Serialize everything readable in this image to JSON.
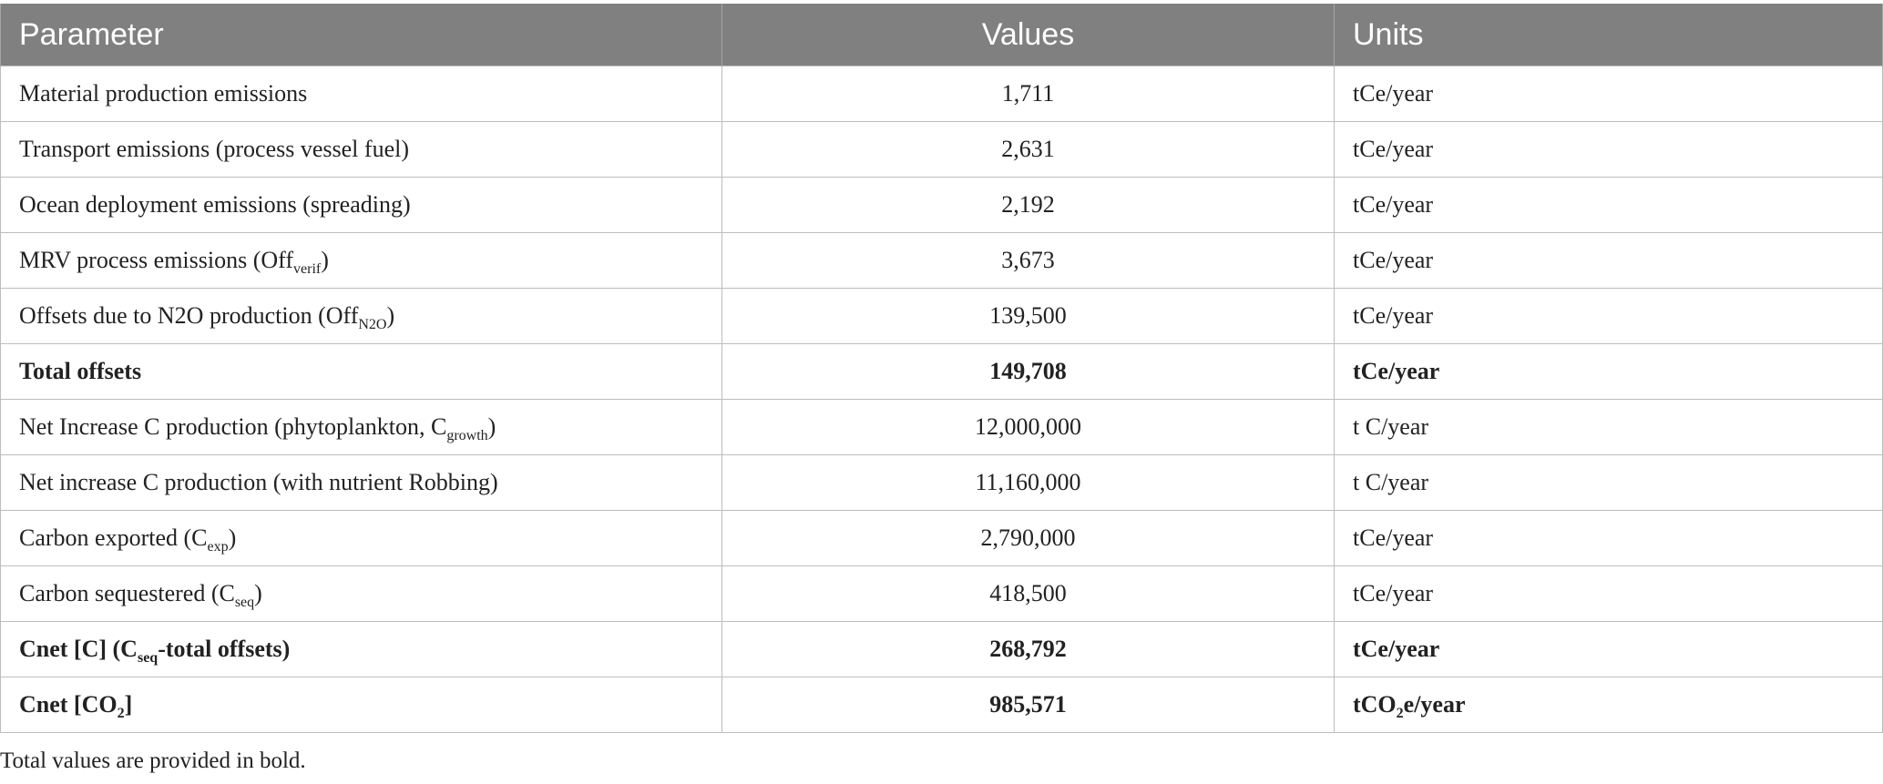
{
  "table": {
    "headers": [
      "Parameter",
      "Values",
      "Units"
    ],
    "rows": [
      {
        "param": "Material production emissions",
        "value": "1,711",
        "unit": "tCe/year"
      },
      {
        "param": "Transport emissions (process vessel fuel)",
        "value": "2,631",
        "unit": "tCe/year"
      },
      {
        "param": "Ocean deployment emissions (spreading)",
        "value": "2,192",
        "unit": "tCe/year"
      },
      {
        "param_pre": "MRV process emissions (Off",
        "param_sub": "verif",
        "param_post": ")",
        "value": "3,673",
        "unit": "tCe/year"
      },
      {
        "param_pre": "Offsets due to N2O production (Off",
        "param_sub": "N2O",
        "param_post": ")",
        "value": "139,500",
        "unit": "tCe/year"
      },
      {
        "param": "Total offsets",
        "value": "149,708",
        "unit": "tCe/year",
        "bold": true
      },
      {
        "param_pre": "Net Increase C production (phytoplankton, C",
        "param_sub": "growth",
        "param_post": ")",
        "value": "12,000,000",
        "unit": "t C/year"
      },
      {
        "param": "Net increase C production (with nutrient Robbing)",
        "value": "11,160,000",
        "unit": "t C/year"
      },
      {
        "param_pre": "Carbon exported (C",
        "param_sub": "exp",
        "param_post": ")",
        "value": "2,790,000",
        "unit": "tCe/year"
      },
      {
        "param_pre": "Carbon sequestered (C",
        "param_sub": "seq",
        "param_post": ")",
        "value": "418,500",
        "unit": "tCe/year"
      },
      {
        "param_pre": "Cnet [C] (C",
        "param_sub": "seq",
        "param_post": "-total offsets)",
        "value": "268,792",
        "unit": "tCe/year",
        "bold": true
      },
      {
        "param_pre": "Cnet [CO",
        "param_sub": "2",
        "param_post": "]",
        "value": "985,571",
        "unit_pre": "tCO",
        "unit_sub": "2",
        "unit_post": "e/year",
        "bold": true
      }
    ]
  },
  "footnote": "Total values are provided in bold."
}
